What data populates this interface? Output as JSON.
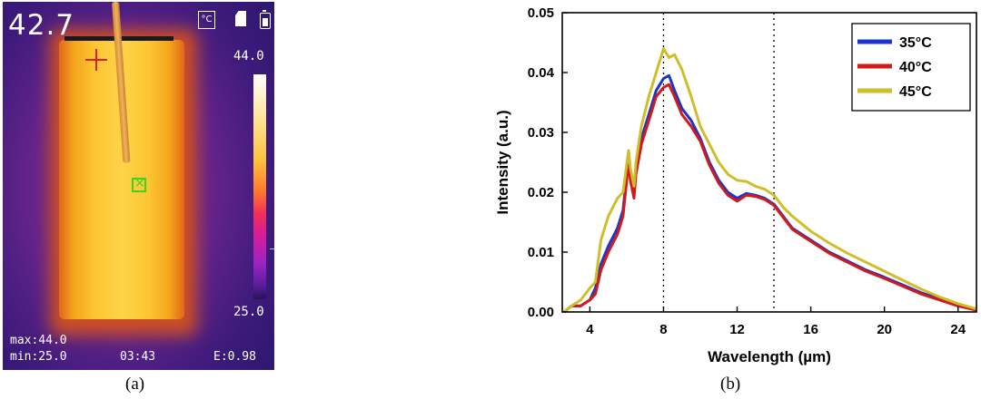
{
  "panel_a": {
    "caption": "(a)",
    "temp_reading": "42.7",
    "scale_max": "44.0",
    "scale_min": "25.0",
    "stat_max": "max:44.0",
    "stat_min": "min:25.0",
    "time": "03:43",
    "emissivity": "E:0.98",
    "icons": [
      "celsius-icon",
      "sd-card-icon",
      "battery-icon"
    ],
    "colors": {
      "hot": "#fed348",
      "mid": "#e2661a",
      "cold": "#3b1a7a",
      "marker": "#38d41f",
      "crosshair": "#e21d1d"
    }
  },
  "panel_b": {
    "caption": "(b)"
  },
  "chart_data": {
    "type": "line",
    "title": "",
    "xlabel": "Wavelength (µm)",
    "ylabel": "Intensity (a.u.)",
    "xlim": [
      2.5,
      25
    ],
    "ylim": [
      0,
      0.05
    ],
    "xticks": [
      4,
      8,
      12,
      16,
      20,
      24
    ],
    "yticks": [
      0.0,
      0.01,
      0.02,
      0.03,
      0.04,
      0.05
    ],
    "ytick_labels": [
      "0.00",
      "0.01",
      "0.02",
      "0.03",
      "0.04",
      "0.05"
    ],
    "vlines": [
      8,
      14
    ],
    "grid": false,
    "legend_position": "top-right",
    "x": [
      2.6,
      3,
      3.5,
      4,
      4.3,
      4.6,
      5,
      5.5,
      5.8,
      6.1,
      6.2,
      6.4,
      6.5,
      6.8,
      7.2,
      7.6,
      8,
      8.3,
      8.6,
      9,
      9.5,
      10,
      10.5,
      11,
      11.5,
      12,
      12.5,
      13,
      13.5,
      14,
      14.5,
      15,
      16,
      17,
      18,
      19,
      20,
      21,
      22,
      23,
      24,
      25
    ],
    "series": [
      {
        "name": "35°C",
        "color": "#1c34cc",
        "values": [
          0.0,
          0.001,
          0.001,
          0.002,
          0.004,
          0.008,
          0.011,
          0.014,
          0.017,
          0.026,
          0.023,
          0.02,
          0.024,
          0.029,
          0.033,
          0.037,
          0.039,
          0.0395,
          0.037,
          0.034,
          0.032,
          0.029,
          0.025,
          0.022,
          0.02,
          0.019,
          0.0198,
          0.0195,
          0.019,
          0.018,
          0.016,
          0.014,
          0.012,
          0.01,
          0.0085,
          0.007,
          0.0058,
          0.0045,
          0.0032,
          0.0022,
          0.0012,
          0.0004
        ]
      },
      {
        "name": "40°C",
        "color": "#d21a1a",
        "values": [
          0.0,
          0.001,
          0.001,
          0.002,
          0.003,
          0.007,
          0.01,
          0.013,
          0.016,
          0.025,
          0.022,
          0.019,
          0.023,
          0.028,
          0.032,
          0.036,
          0.0375,
          0.038,
          0.036,
          0.033,
          0.031,
          0.0285,
          0.0245,
          0.0215,
          0.0195,
          0.0185,
          0.0195,
          0.0193,
          0.0188,
          0.0178,
          0.0158,
          0.0138,
          0.0118,
          0.0098,
          0.0083,
          0.0068,
          0.0056,
          0.0043,
          0.003,
          0.002,
          0.001,
          0.0003
        ]
      },
      {
        "name": "45°C",
        "color": "#cfbe2a",
        "values": [
          0.0,
          0.001,
          0.002,
          0.004,
          0.005,
          0.012,
          0.016,
          0.019,
          0.02,
          0.027,
          0.024,
          0.021,
          0.025,
          0.031,
          0.036,
          0.04,
          0.044,
          0.0425,
          0.043,
          0.0405,
          0.036,
          0.031,
          0.028,
          0.025,
          0.023,
          0.022,
          0.0218,
          0.021,
          0.0205,
          0.0195,
          0.0175,
          0.016,
          0.0135,
          0.0115,
          0.0098,
          0.0083,
          0.0068,
          0.0053,
          0.0038,
          0.0025,
          0.0014,
          0.0005
        ]
      }
    ]
  }
}
